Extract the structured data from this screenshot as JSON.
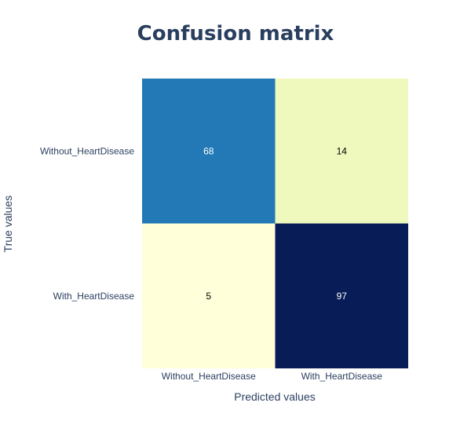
{
  "chart_data": {
    "type": "heatmap",
    "title": "Confusion matrix",
    "xlabel": "Predicted values",
    "ylabel": "True values",
    "x_categories": [
      "Without_HeartDisease",
      "With_HeartDisease"
    ],
    "y_categories": [
      "Without_HeartDisease",
      "With_HeartDisease"
    ],
    "values": [
      [
        68,
        14
      ],
      [
        5,
        97
      ]
    ],
    "colorscale": "YlGnBu",
    "cell_colors": [
      [
        "#2279b5",
        "#eff9bd"
      ],
      [
        "#ffffd9",
        "#081d58"
      ]
    ],
    "label_colors": [
      [
        "#ffffff",
        "#000000"
      ],
      [
        "#000000",
        "#ffffff"
      ]
    ],
    "show_colorbar": false
  }
}
